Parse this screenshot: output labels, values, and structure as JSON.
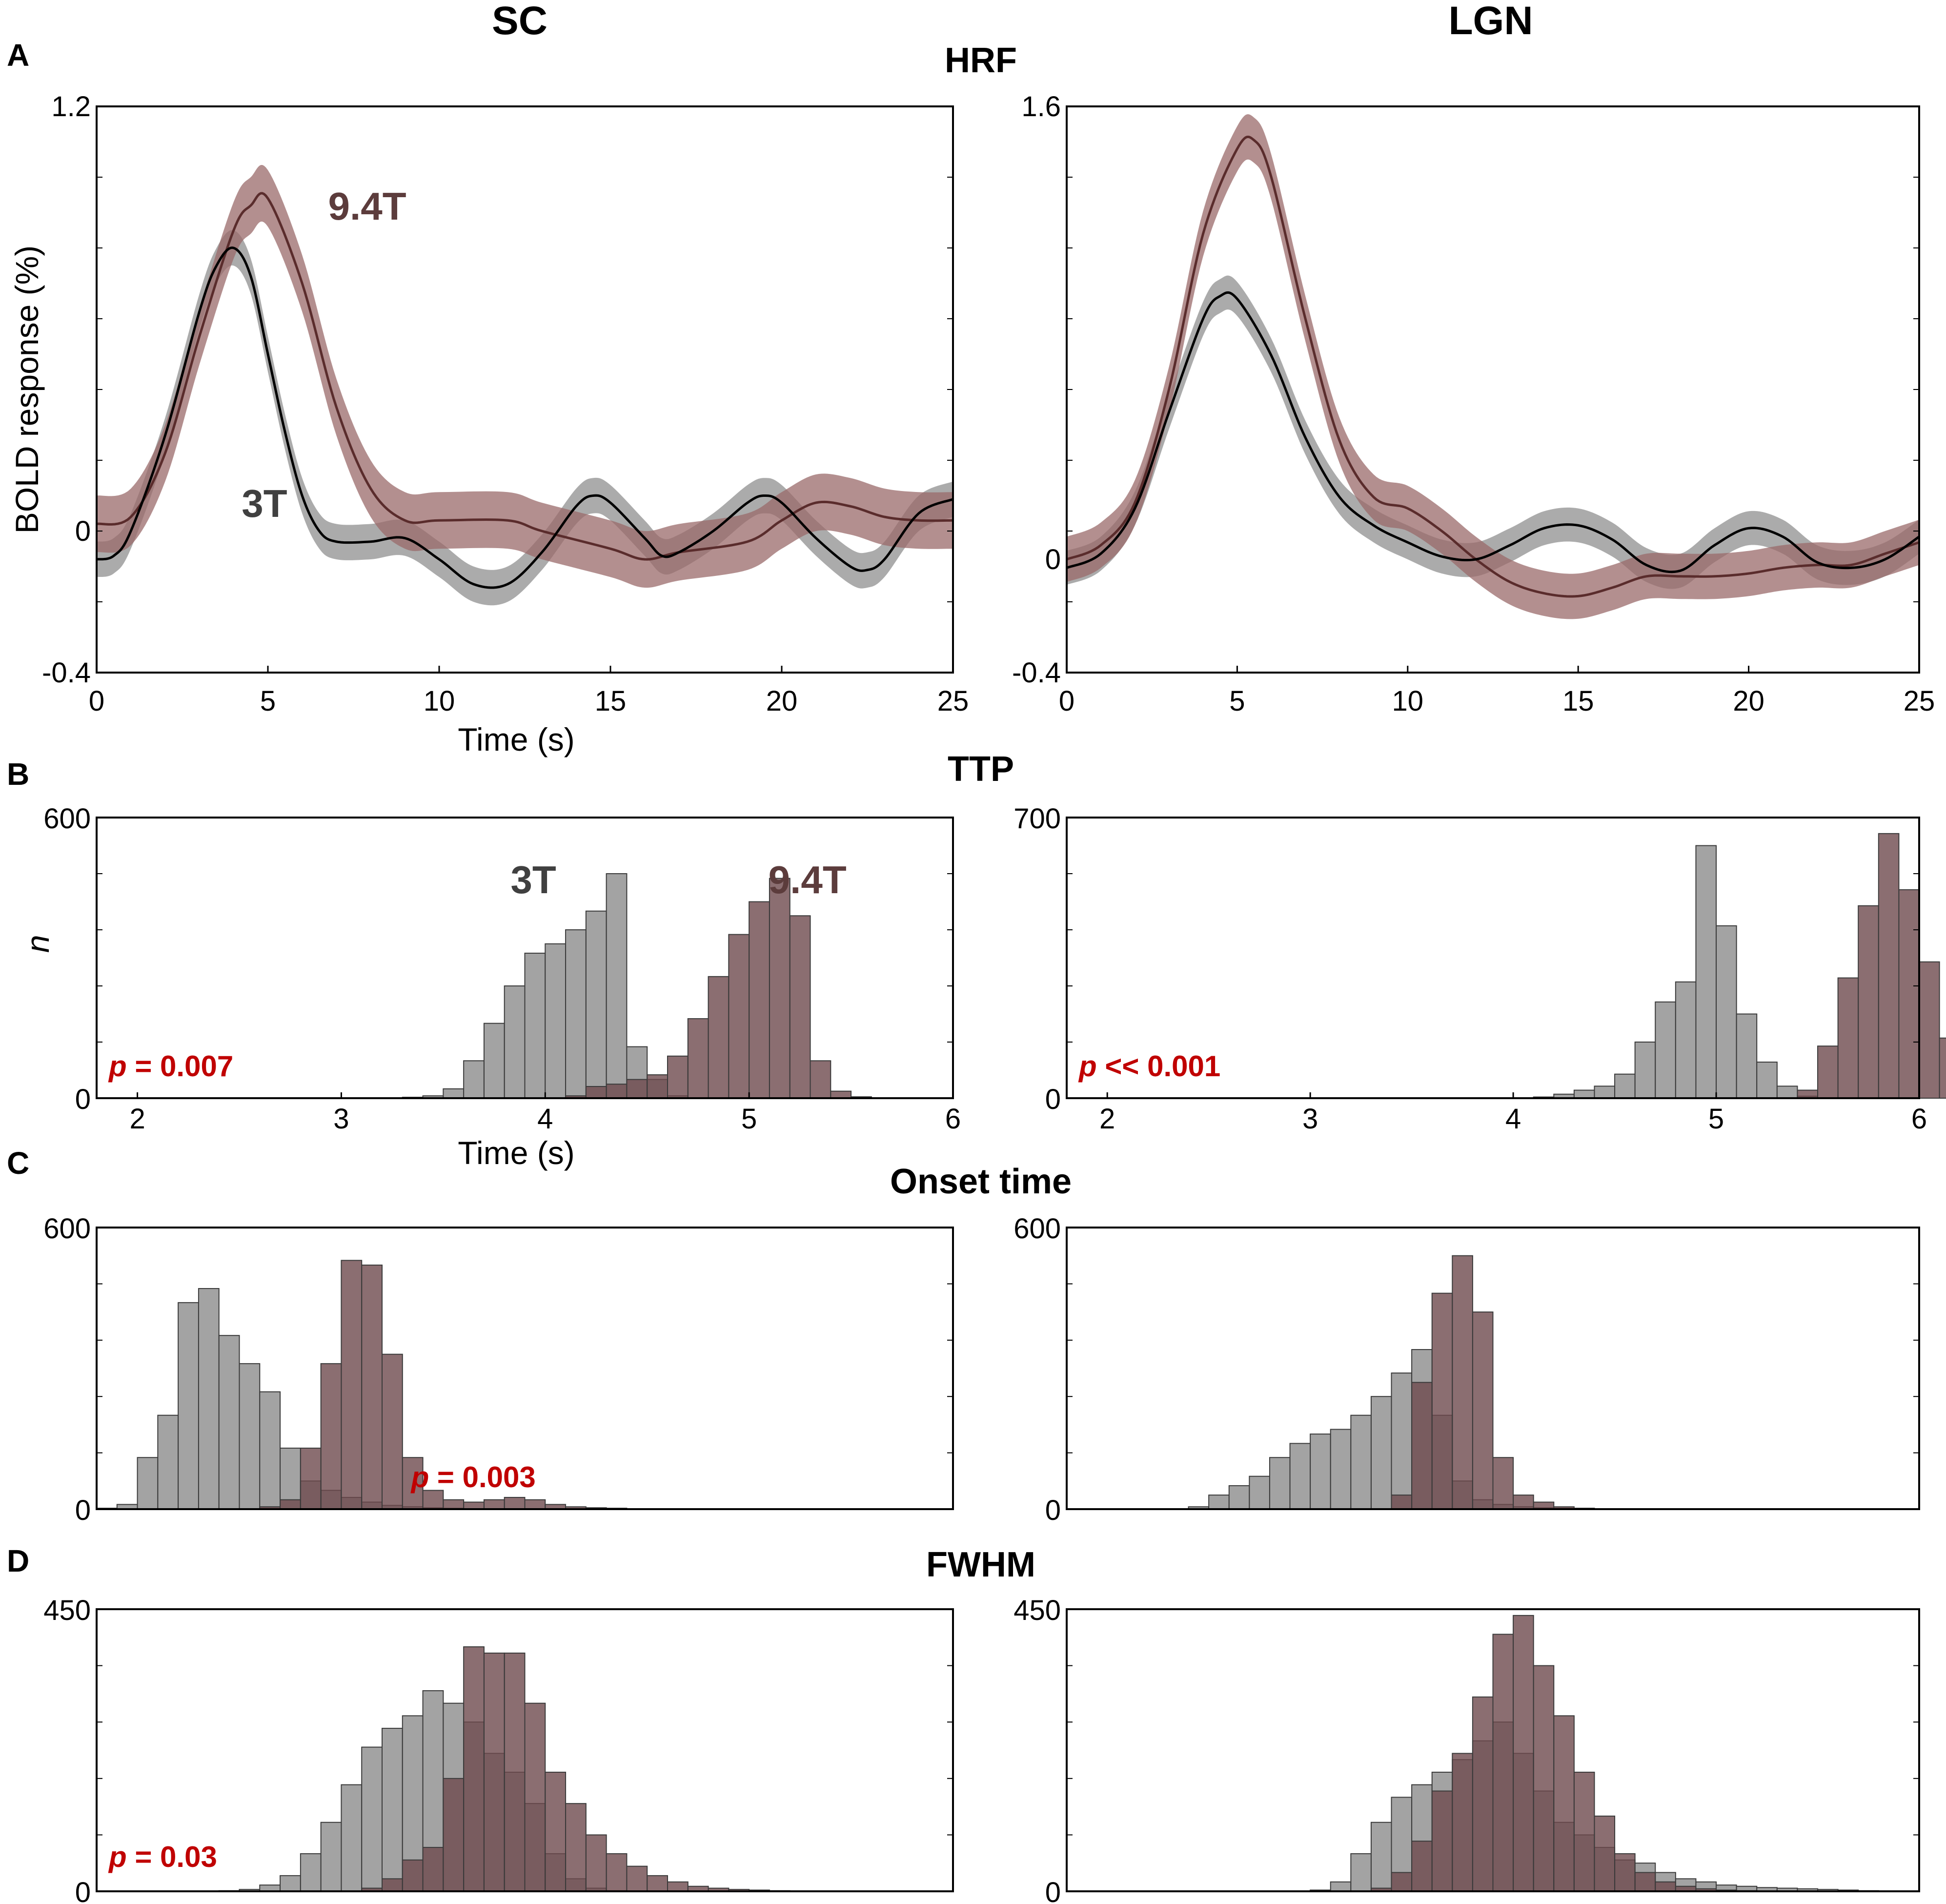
{
  "column_headers": [
    "SC",
    "LGN"
  ],
  "panel_letters": [
    "A",
    "B",
    "C",
    "D"
  ],
  "section_titles": [
    "HRF",
    "TTP",
    "Onset time",
    "FWHM"
  ],
  "colors": {
    "series_3T_line": "#000000",
    "series_3T_band": "#8f8f8f",
    "series_94T_line": "#5a2c2c",
    "series_94T_band": "#9a6a6a",
    "hist_3T": "#9e9e9e",
    "hist_94T": "#6e4a4e",
    "pvalue": "#c00000",
    "label_3T": "#404040",
    "label_94T": "#5c3c3c"
  },
  "chart_data": [
    {
      "id": "A-SC",
      "type": "line",
      "panel": "A",
      "column": "SC",
      "title": "HRF",
      "xlabel": "Time (s)",
      "ylabel": "BOLD response (%)",
      "xlim": [
        0,
        25
      ],
      "ylim": [
        -0.4,
        1.2
      ],
      "xticks": [
        "0",
        "5",
        "10",
        "15",
        "20",
        "25"
      ],
      "yticks": [
        "1.2",
        "0",
        "-0.4"
      ],
      "series_labels": [
        "3T",
        "9.4T"
      ],
      "series": [
        {
          "name": "3T",
          "band_halfwidth": 0.05,
          "points": [
            [
              0,
              -0.08
            ],
            [
              0.5,
              -0.07
            ],
            [
              1,
              0.0
            ],
            [
              2,
              0.27
            ],
            [
              3,
              0.62
            ],
            [
              3.5,
              0.75
            ],
            [
              4,
              0.8
            ],
            [
              4.5,
              0.72
            ],
            [
              5,
              0.5
            ],
            [
              5.5,
              0.28
            ],
            [
              6,
              0.1
            ],
            [
              6.5,
              0.0
            ],
            [
              7,
              -0.03
            ],
            [
              8,
              -0.03
            ],
            [
              9,
              -0.02
            ],
            [
              10,
              -0.08
            ],
            [
              11,
              -0.15
            ],
            [
              12,
              -0.15
            ],
            [
              13,
              -0.06
            ],
            [
              14,
              0.07
            ],
            [
              14.5,
              0.1
            ],
            [
              15,
              0.08
            ],
            [
              16,
              -0.02
            ],
            [
              16.5,
              -0.07
            ],
            [
              17,
              -0.06
            ],
            [
              18,
              0.0
            ],
            [
              19,
              0.08
            ],
            [
              19.5,
              0.1
            ],
            [
              20,
              0.08
            ],
            [
              21,
              -0.02
            ],
            [
              22,
              -0.1
            ],
            [
              22.5,
              -0.11
            ],
            [
              23,
              -0.08
            ],
            [
              24,
              0.05
            ],
            [
              25,
              0.09
            ]
          ]
        },
        {
          "name": "9.4T",
          "band_halfwidth": 0.08,
          "points": [
            [
              0,
              0.02
            ],
            [
              1,
              0.04
            ],
            [
              2,
              0.22
            ],
            [
              3,
              0.55
            ],
            [
              4,
              0.85
            ],
            [
              4.5,
              0.92
            ],
            [
              5,
              0.94
            ],
            [
              6,
              0.7
            ],
            [
              7,
              0.35
            ],
            [
              8,
              0.12
            ],
            [
              9,
              0.03
            ],
            [
              10,
              0.03
            ],
            [
              12,
              0.03
            ],
            [
              13,
              0.0
            ],
            [
              15,
              -0.05
            ],
            [
              16,
              -0.08
            ],
            [
              17,
              -0.06
            ],
            [
              19,
              -0.03
            ],
            [
              20,
              0.03
            ],
            [
              21,
              0.08
            ],
            [
              22,
              0.07
            ],
            [
              23,
              0.04
            ],
            [
              24,
              0.03
            ],
            [
              25,
              0.03
            ]
          ]
        }
      ]
    },
    {
      "id": "A-LGN",
      "type": "line",
      "panel": "A",
      "column": "LGN",
      "title": "HRF",
      "xlabel": "",
      "ylabel": "",
      "xlim": [
        0,
        25
      ],
      "ylim": [
        -0.4,
        1.6
      ],
      "xticks": [
        "0",
        "5",
        "10",
        "15",
        "20",
        "25"
      ],
      "yticks": [
        "1.6",
        "0",
        "-0.4"
      ],
      "series": [
        {
          "name": "3T",
          "band_halfwidth": 0.06,
          "points": [
            [
              0,
              -0.03
            ],
            [
              1,
              0.02
            ],
            [
              2,
              0.18
            ],
            [
              3,
              0.52
            ],
            [
              4,
              0.85
            ],
            [
              4.5,
              0.93
            ],
            [
              5,
              0.92
            ],
            [
              6,
              0.72
            ],
            [
              7,
              0.43
            ],
            [
              8,
              0.22
            ],
            [
              9,
              0.12
            ],
            [
              10,
              0.06
            ],
            [
              11,
              0.01
            ],
            [
              12,
              0.0
            ],
            [
              13,
              0.05
            ],
            [
              14,
              0.11
            ],
            [
              15,
              0.12
            ],
            [
              16,
              0.07
            ],
            [
              17,
              -0.02
            ],
            [
              18,
              -0.04
            ],
            [
              19,
              0.05
            ],
            [
              20,
              0.11
            ],
            [
              21,
              0.08
            ],
            [
              22,
              -0.01
            ],
            [
              23,
              -0.03
            ],
            [
              24,
              0.0
            ],
            [
              25,
              0.08
            ]
          ]
        },
        {
          "name": "9.4T",
          "band_halfwidth": 0.08,
          "points": [
            [
              0,
              0.0
            ],
            [
              1,
              0.05
            ],
            [
              2,
              0.2
            ],
            [
              3,
              0.6
            ],
            [
              4,
              1.15
            ],
            [
              5,
              1.45
            ],
            [
              5.5,
              1.48
            ],
            [
              6,
              1.35
            ],
            [
              7,
              0.85
            ],
            [
              8,
              0.42
            ],
            [
              9,
              0.22
            ],
            [
              10,
              0.18
            ],
            [
              11,
              0.1
            ],
            [
              12,
              0.0
            ],
            [
              13,
              -0.08
            ],
            [
              14,
              -0.12
            ],
            [
              15,
              -0.13
            ],
            [
              16,
              -0.1
            ],
            [
              17,
              -0.06
            ],
            [
              18,
              -0.06
            ],
            [
              19,
              -0.06
            ],
            [
              20,
              -0.05
            ],
            [
              21,
              -0.03
            ],
            [
              22,
              -0.02
            ],
            [
              23,
              -0.02
            ],
            [
              24,
              0.02
            ],
            [
              25,
              0.06
            ]
          ]
        }
      ]
    },
    {
      "id": "B-SC",
      "type": "bar",
      "panel": "B",
      "column": "SC",
      "title": "TTP",
      "xlabel": "Time (s)",
      "ylabel": "n",
      "xlim": [
        1.8,
        6.0
      ],
      "ylim": [
        0,
        600
      ],
      "xticks": [
        "2",
        "3",
        "4",
        "5",
        "6"
      ],
      "yticks": [
        "600",
        "0"
      ],
      "bin_start": 3.3,
      "bin_width": 0.1,
      "series_labels": [
        "3T",
        "9.4T"
      ],
      "pvalue": {
        "label": "p",
        "text": " = 0.007"
      },
      "series": [
        {
          "name": "3T",
          "values": [
            2,
            5,
            20,
            80,
            160,
            240,
            310,
            330,
            360,
            400,
            480,
            110,
            40,
            5,
            1
          ]
        },
        {
          "name": "9.4T",
          "values": [
            0,
            0,
            0,
            0,
            0,
            0,
            0,
            0,
            5,
            25,
            30,
            40,
            50,
            90,
            170,
            260,
            350,
            420,
            470,
            390,
            80,
            15,
            3
          ]
        }
      ]
    },
    {
      "id": "B-LGN",
      "type": "bar",
      "panel": "B",
      "column": "LGN",
      "title": "TTP",
      "xlabel": "",
      "ylabel": "",
      "xlim": [
        1.8,
        6.0
      ],
      "ylim": [
        0,
        700
      ],
      "xticks": [
        "2",
        "3",
        "4",
        "5",
        "6"
      ],
      "yticks": [
        "700",
        "0"
      ],
      "bin_start": 4.1,
      "bin_width": 0.1,
      "pvalue": {
        "label": "p",
        "text": " << 0.001"
      },
      "series": [
        {
          "name": "3T",
          "values": [
            3,
            10,
            20,
            30,
            60,
            140,
            240,
            290,
            630,
            430,
            210,
            90,
            30,
            5
          ]
        },
        {
          "name": "9.4T",
          "values": [
            0,
            0,
            0,
            0,
            0,
            0,
            0,
            0,
            0,
            0,
            0,
            0,
            0,
            20,
            130,
            300,
            480,
            660,
            520,
            340,
            150
          ]
        }
      ]
    },
    {
      "id": "C-SC",
      "type": "bar",
      "panel": "C",
      "column": "SC",
      "title": "Onset time",
      "ylim": [
        0,
        600
      ],
      "yticks": [
        "600",
        "0"
      ],
      "xticks": [],
      "n_bins": 42,
      "pvalue": {
        "label": "p",
        "text": " = 0.003"
      },
      "series": [
        {
          "name": "3T",
          "values": [
            2,
            10,
            110,
            200,
            440,
            470,
            370,
            310,
            250,
            130,
            60,
            40,
            25,
            15,
            8,
            5,
            3,
            2,
            1,
            1,
            1,
            0,
            0,
            0,
            0,
            0,
            0,
            0,
            0,
            0,
            0,
            0,
            0,
            0,
            0,
            0,
            0,
            0,
            0,
            0,
            0,
            0
          ]
        },
        {
          "name": "9.4T",
          "values": [
            0,
            0,
            0,
            0,
            0,
            0,
            0,
            0,
            5,
            20,
            130,
            310,
            530,
            520,
            330,
            110,
            40,
            20,
            15,
            20,
            25,
            20,
            10,
            5,
            3,
            2,
            1,
            0,
            0,
            0,
            0,
            0,
            0,
            0,
            0,
            0,
            0,
            0,
            0,
            0,
            0,
            0
          ]
        }
      ]
    },
    {
      "id": "C-LGN",
      "type": "bar",
      "panel": "C",
      "column": "LGN",
      "title": "Onset time",
      "ylim": [
        0,
        600
      ],
      "yticks": [
        "600",
        "0"
      ],
      "xticks": [],
      "n_bins": 42,
      "series": [
        {
          "name": "3T",
          "values": [
            0,
            0,
            0,
            0,
            0,
            0,
            5,
            30,
            50,
            70,
            110,
            140,
            160,
            170,
            200,
            240,
            290,
            340,
            200,
            60,
            20,
            10,
            5,
            3,
            2,
            1,
            1,
            0,
            0,
            0,
            1,
            0,
            0,
            0,
            0,
            0,
            0,
            0,
            0,
            0,
            0,
            0
          ]
        },
        {
          "name": "9.4T",
          "values": [
            0,
            0,
            0,
            0,
            0,
            0,
            0,
            0,
            0,
            0,
            0,
            0,
            0,
            0,
            0,
            0,
            30,
            270,
            460,
            540,
            420,
            110,
            30,
            15,
            5,
            2,
            1,
            0,
            0,
            0,
            0,
            0,
            0,
            0,
            0,
            0,
            0,
            0,
            0,
            0,
            0,
            0
          ]
        }
      ]
    },
    {
      "id": "D-SC",
      "type": "bar",
      "panel": "D",
      "column": "SC",
      "title": "FWHM",
      "ylim": [
        0,
        450
      ],
      "yticks": [
        "450",
        "0"
      ],
      "xticks": [],
      "n_bins": 42,
      "pvalue": {
        "label": "p",
        "text": " = 0.03"
      },
      "series": [
        {
          "name": "3T",
          "values": [
            0,
            0,
            0,
            0,
            0,
            0,
            1,
            3,
            10,
            25,
            60,
            110,
            170,
            230,
            260,
            280,
            320,
            300,
            270,
            220,
            190,
            140,
            60,
            20,
            5,
            1,
            0,
            0,
            0,
            0,
            0,
            0,
            0,
            0,
            0,
            0,
            0,
            0,
            0,
            0,
            0,
            0
          ]
        },
        {
          "name": "9.4T",
          "values": [
            0,
            0,
            0,
            0,
            0,
            0,
            0,
            0,
            0,
            0,
            0,
            0,
            0,
            5,
            20,
            50,
            70,
            180,
            390,
            380,
            380,
            300,
            190,
            140,
            90,
            60,
            40,
            25,
            15,
            8,
            5,
            3,
            2,
            1,
            0,
            0,
            0,
            0,
            0,
            0,
            0,
            0
          ]
        }
      ]
    },
    {
      "id": "D-LGN",
      "type": "bar",
      "panel": "D",
      "column": "LGN",
      "title": "FWHM",
      "ylim": [
        0,
        450
      ],
      "yticks": [
        "450",
        "0"
      ],
      "xticks": [],
      "n_bins": 42,
      "series": [
        {
          "name": "3T",
          "values": [
            0,
            0,
            0,
            0,
            0,
            0,
            0,
            0,
            0,
            0,
            0,
            0,
            2,
            15,
            60,
            110,
            150,
            170,
            190,
            210,
            240,
            270,
            220,
            160,
            110,
            90,
            70,
            50,
            45,
            30,
            20,
            15,
            10,
            8,
            6,
            5,
            4,
            3,
            2,
            1,
            0,
            0
          ]
        },
        {
          "name": "9.4T",
          "values": [
            0,
            0,
            0,
            0,
            0,
            0,
            0,
            0,
            0,
            0,
            0,
            0,
            0,
            0,
            0,
            5,
            30,
            80,
            160,
            220,
            310,
            410,
            440,
            360,
            280,
            190,
            120,
            60,
            30,
            15,
            8,
            4,
            2,
            1,
            0,
            0,
            0,
            0,
            0,
            0,
            0,
            0
          ]
        }
      ]
    }
  ]
}
